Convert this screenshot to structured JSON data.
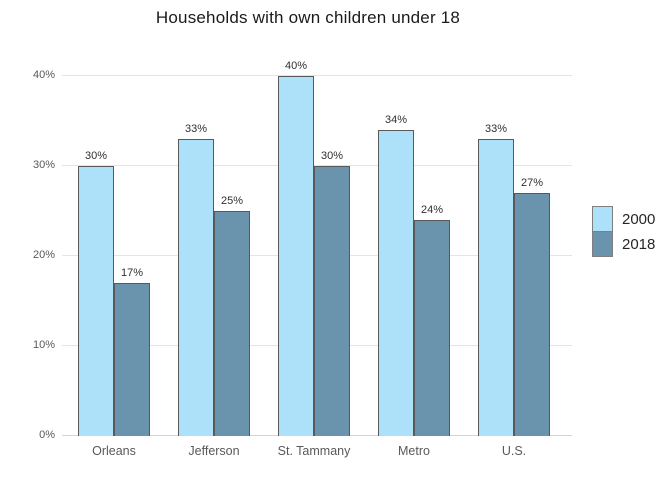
{
  "chart_data": {
    "type": "bar",
    "title": "Households with own children under 18",
    "categories": [
      "Orleans",
      "Jefferson",
      "St. Tammany",
      "Metro",
      "U.S."
    ],
    "series": [
      {
        "name": "2000",
        "color": "#ade1f9",
        "values": [
          30,
          33,
          40,
          34,
          33
        ],
        "labels": [
          "30%",
          "33%",
          "40%",
          "34%",
          "33%"
        ]
      },
      {
        "name": "2018",
        "color": "#6a93ae",
        "values": [
          17,
          25,
          30,
          24,
          27
        ],
        "labels": [
          "17%",
          "25%",
          "30%",
          "24%",
          "27%"
        ]
      }
    ],
    "xlabel": "",
    "ylabel": "",
    "ylim": [
      0,
      41.8
    ],
    "y_ticks": [
      {
        "pct": 0,
        "label": "0%"
      },
      {
        "pct": 10,
        "label": "10%"
      },
      {
        "pct": 20,
        "label": "20%"
      },
      {
        "pct": 30,
        "label": "30%"
      },
      {
        "pct": 40,
        "label": "40%"
      }
    ],
    "grid": "horizontal",
    "legend_position": "right",
    "colors": {
      "bar_border": "#595959",
      "gridline": "#e4e4e4",
      "axis_line": "#d4d4d4",
      "axis_text": "#595959",
      "value_label_text": "#303030",
      "title_text": "#1a1a1a",
      "legend_text": "#262626",
      "legend_swatch_border": "#7f7f7f",
      "background": "#ffffff"
    }
  }
}
